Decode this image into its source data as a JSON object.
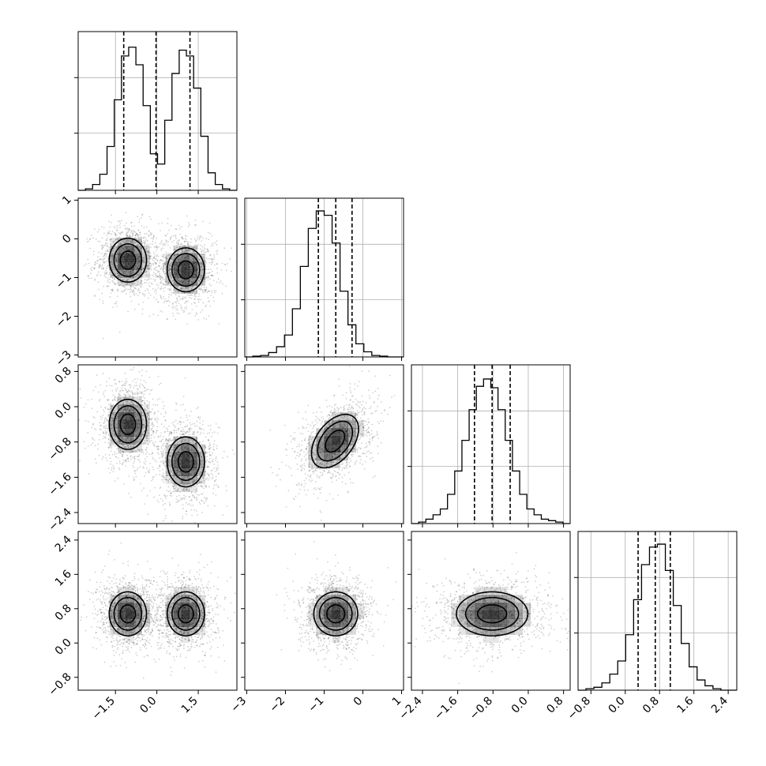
{
  "chart_data": {
    "type": "corner",
    "n_params": 4,
    "colors": {
      "line": "#000000",
      "grid": "#b0b0b0",
      "points": "#000000"
    },
    "grid": true,
    "params": [
      {
        "range": [
          -2.85,
          2.9
        ],
        "ticks": [
          -1.5,
          0.0,
          1.5
        ],
        "tick_labels": [
          "−1.5",
          "0.0",
          "1.5"
        ],
        "quantiles": [
          -1.2,
          -0.03,
          1.2
        ],
        "mixture": [
          {
            "mu": -1.05,
            "sigma": 0.55,
            "w": 0.5
          },
          {
            "mu": 1.05,
            "sigma": 0.55,
            "w": 0.5
          }
        ],
        "hist": [
          0,
          0.01,
          0.04,
          0.11,
          0.3,
          0.62,
          0.92,
          0.98,
          0.86,
          0.58,
          0.25,
          0.18,
          0.48,
          0.8,
          0.96,
          0.92,
          0.7,
          0.37,
          0.12,
          0.04,
          0.01,
          0
        ]
      },
      {
        "range": [
          -3.05,
          1.05
        ],
        "ticks": [
          -3,
          -2,
          -1,
          0,
          1
        ],
        "tick_labels": [
          "−3",
          "−2",
          "−1",
          "0",
          "1"
        ],
        "quantiles": [
          -1.15,
          -0.7,
          -0.28
        ],
        "mixture": [
          {
            "mu": -0.7,
            "sigma": 0.42,
            "w": 1
          }
        ],
        "hist": [
          0,
          0.005,
          0.01,
          0.03,
          0.07,
          0.15,
          0.33,
          0.62,
          0.88,
          1.0,
          0.97,
          0.78,
          0.45,
          0.22,
          0.09,
          0.035,
          0.01,
          0.005,
          0,
          0
        ]
      },
      {
        "range": [
          -2.65,
          0.95
        ],
        "ticks": [
          -2.4,
          -1.6,
          -0.8,
          0.0,
          0.8
        ],
        "tick_labels": [
          "−2.4",
          "−1.6",
          "−0.8",
          "0.0",
          "0.8"
        ],
        "quantiles": [
          -1.22,
          -0.82,
          -0.41
        ],
        "mixture": [
          {
            "mu": -0.4,
            "sigma": 0.42,
            "w": 0.5
          },
          {
            "mu": -1.25,
            "sigma": 0.42,
            "w": 0.5
          }
        ],
        "hist": [
          0,
          0.01,
          0.03,
          0.06,
          0.1,
          0.2,
          0.36,
          0.57,
          0.78,
          0.94,
          0.99,
          0.93,
          0.78,
          0.57,
          0.36,
          0.2,
          0.1,
          0.06,
          0.03,
          0.02,
          0.01,
          0
        ]
      },
      {
        "range": [
          -1.1,
          2.6
        ],
        "ticks": [
          -0.8,
          0.0,
          0.8,
          1.6,
          2.4
        ],
        "tick_labels": [
          "−0.8",
          "0.0",
          "0.8",
          "1.6",
          "2.4"
        ],
        "quantiles": [
          0.3,
          0.7,
          1.05
        ],
        "mixture": [
          {
            "mu": 0.68,
            "sigma": 0.38,
            "w": 1
          }
        ],
        "hist": [
          0,
          0.01,
          0.02,
          0.05,
          0.11,
          0.2,
          0.38,
          0.62,
          0.86,
          0.98,
          1.0,
          0.82,
          0.58,
          0.32,
          0.16,
          0.07,
          0.03,
          0.01,
          0,
          0
        ]
      }
    ],
    "pairs": [
      {
        "row": 1,
        "col": 0,
        "clusters": [
          {
            "mx": -1.05,
            "my": -0.55,
            "sx": 0.5,
            "sy": 0.42,
            "rho": 0
          },
          {
            "mx": 1.05,
            "my": -0.8,
            "sx": 0.5,
            "sy": 0.42,
            "rho": 0
          }
        ]
      },
      {
        "row": 2,
        "col": 0,
        "clusters": [
          {
            "mx": -1.05,
            "my": -0.4,
            "sx": 0.5,
            "sy": 0.42,
            "rho": 0
          },
          {
            "mx": 1.05,
            "my": -1.25,
            "sx": 0.5,
            "sy": 0.42,
            "rho": 0
          }
        ]
      },
      {
        "row": 2,
        "col": 1,
        "clusters": [
          {
            "mx": -0.72,
            "my": -0.78,
            "sx": 0.45,
            "sy": 0.45,
            "rho": 0.45
          }
        ]
      },
      {
        "row": 3,
        "col": 0,
        "clusters": [
          {
            "mx": -1.05,
            "my": 0.68,
            "sx": 0.5,
            "sy": 0.38,
            "rho": 0
          },
          {
            "mx": 1.05,
            "my": 0.68,
            "sx": 0.5,
            "sy": 0.38,
            "rho": 0
          }
        ]
      },
      {
        "row": 3,
        "col": 1,
        "clusters": [
          {
            "mx": -0.7,
            "my": 0.68,
            "sx": 0.42,
            "sy": 0.38,
            "rho": 0
          }
        ]
      },
      {
        "row": 3,
        "col": 2,
        "clusters": [
          {
            "mx": -0.82,
            "my": 0.68,
            "sx": 0.6,
            "sy": 0.38,
            "rho": 0
          }
        ]
      }
    ]
  }
}
